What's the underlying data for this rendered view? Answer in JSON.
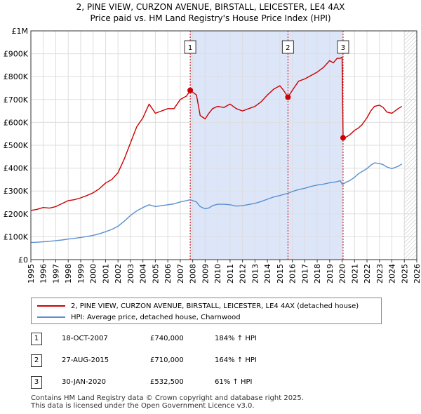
{
  "chart_data": {
    "type": "line",
    "title": "2, PINE VIEW, CURZON AVENUE, BIRSTALL, LEICESTER, LE4 4AX",
    "subtitle": "Price paid vs. HM Land Registry's House Price Index (HPI)",
    "xlim": [
      1995,
      2026
    ],
    "ylim": [
      0,
      1000000
    ],
    "x_ticks": [
      "1995",
      "1996",
      "1997",
      "1998",
      "1999",
      "2000",
      "2001",
      "2002",
      "2003",
      "2004",
      "2005",
      "2006",
      "2007",
      "2008",
      "2009",
      "2010",
      "2011",
      "2012",
      "2013",
      "2014",
      "2015",
      "2016",
      "2017",
      "2018",
      "2019",
      "2020",
      "2021",
      "2022",
      "2023",
      "2024",
      "2025",
      "2026"
    ],
    "y_ticks": [
      {
        "value": 0,
        "label": "£0"
      },
      {
        "value": 100000,
        "label": "£100K"
      },
      {
        "value": 200000,
        "label": "£200K"
      },
      {
        "value": 300000,
        "label": "£300K"
      },
      {
        "value": 400000,
        "label": "£400K"
      },
      {
        "value": 500000,
        "label": "£500K"
      },
      {
        "value": 600000,
        "label": "£600K"
      },
      {
        "value": 700000,
        "label": "£700K"
      },
      {
        "value": 800000,
        "label": "£800K"
      },
      {
        "value": 900000,
        "label": "£900K"
      },
      {
        "value": 1000000,
        "label": "£1M"
      }
    ],
    "shaded_regions": [
      [
        2007.8,
        2020.08
      ]
    ],
    "future_hatch_from": 2025.0,
    "series": [
      {
        "name": "2, PINE VIEW, CURZON AVENUE, BIRSTALL, LEICESTER, LE4 4AX (detached house)",
        "color": "#cc0000",
        "x": [
          1995.0,
          1995.5,
          1996.0,
          1996.5,
          1997.0,
          1997.5,
          1998.0,
          1998.5,
          1999.0,
          1999.5,
          2000.0,
          2000.5,
          2001.0,
          2001.5,
          2002.0,
          2002.5,
          2003.0,
          2003.5,
          2004.0,
          2004.5,
          2005.0,
          2005.5,
          2006.0,
          2006.5,
          2007.0,
          2007.5,
          2007.8,
          2008.3,
          2008.6,
          2009.0,
          2009.3,
          2009.6,
          2010.0,
          2010.5,
          2011.0,
          2011.5,
          2012.0,
          2012.5,
          2013.0,
          2013.5,
          2014.0,
          2014.5,
          2015.0,
          2015.3,
          2015.65,
          2016.0,
          2016.5,
          2017.0,
          2017.5,
          2018.0,
          2018.5,
          2019.0,
          2019.3,
          2019.6,
          2019.85,
          2020.0,
          2020.08,
          2020.3,
          2020.6,
          2021.0,
          2021.3,
          2021.6,
          2022.0,
          2022.3,
          2022.6,
          2023.0,
          2023.3,
          2023.6,
          2024.0,
          2024.5,
          2024.8
        ],
        "y": [
          215000,
          220000,
          228000,
          225000,
          232000,
          245000,
          258000,
          262000,
          270000,
          280000,
          292000,
          310000,
          335000,
          350000,
          380000,
          440000,
          510000,
          580000,
          620000,
          680000,
          640000,
          650000,
          660000,
          660000,
          700000,
          715000,
          740000,
          720000,
          630000,
          615000,
          640000,
          660000,
          670000,
          665000,
          680000,
          660000,
          650000,
          660000,
          670000,
          690000,
          720000,
          745000,
          760000,
          740000,
          710000,
          740000,
          780000,
          790000,
          805000,
          820000,
          840000,
          870000,
          860000,
          880000,
          880000,
          885000,
          532500,
          535000,
          545000,
          565000,
          575000,
          590000,
          620000,
          650000,
          670000,
          675000,
          665000,
          645000,
          640000,
          660000,
          670000
        ],
        "legend_label": "2, PINE VIEW, CURZON AVENUE, BIRSTALL, LEICESTER, LE4 4AX (detached house)"
      },
      {
        "name": "HPI: Average price, detached house, Charnwood",
        "color": "#5a8fd0",
        "x": [
          1995.0,
          1995.5,
          1996.0,
          1996.5,
          1997.0,
          1997.5,
          1998.0,
          1998.5,
          1999.0,
          1999.5,
          2000.0,
          2000.5,
          2001.0,
          2001.5,
          2002.0,
          2002.5,
          2003.0,
          2003.5,
          2004.0,
          2004.5,
          2005.0,
          2005.5,
          2006.0,
          2006.5,
          2007.0,
          2007.5,
          2007.8,
          2008.3,
          2008.6,
          2009.0,
          2009.3,
          2009.6,
          2010.0,
          2010.5,
          2011.0,
          2011.5,
          2012.0,
          2012.5,
          2013.0,
          2013.5,
          2014.0,
          2014.5,
          2015.0,
          2015.3,
          2015.65,
          2016.0,
          2016.5,
          2017.0,
          2017.5,
          2018.0,
          2018.5,
          2019.0,
          2019.3,
          2019.6,
          2019.85,
          2020.0,
          2020.08,
          2020.3,
          2020.6,
          2021.0,
          2021.3,
          2021.6,
          2022.0,
          2022.3,
          2022.6,
          2023.0,
          2023.3,
          2023.6,
          2024.0,
          2024.5,
          2024.8
        ],
        "y": [
          75000,
          76000,
          78000,
          80000,
          83000,
          86000,
          90000,
          93000,
          97000,
          101000,
          106000,
          113000,
          122000,
          132000,
          146000,
          168000,
          193000,
          213000,
          228000,
          240000,
          232000,
          236000,
          240000,
          244000,
          252000,
          258000,
          262000,
          252000,
          232000,
          222000,
          226000,
          236000,
          242000,
          242000,
          240000,
          234000,
          236000,
          241000,
          246000,
          254000,
          264000,
          274000,
          280000,
          285000,
          290000,
          298000,
          306000,
          312000,
          320000,
          326000,
          330000,
          336000,
          338000,
          341000,
          345000,
          330000,
          330000,
          338000,
          345000,
          360000,
          375000,
          385000,
          398000,
          413000,
          423000,
          420000,
          415000,
          405000,
          398000,
          408000,
          418000
        ],
        "legend_label": "HPI: Average price, detached house, Charnwood"
      }
    ],
    "transactions": [
      {
        "id": "1",
        "x": 2007.8,
        "date": "18-OCT-2007",
        "price_value": 740000,
        "price": "£740,000",
        "hpi": "184% ↑ HPI"
      },
      {
        "id": "2",
        "x": 2015.65,
        "date": "27-AUG-2015",
        "price_value": 710000,
        "price": "£710,000",
        "hpi": "164% ↑ HPI"
      },
      {
        "id": "3",
        "x": 2020.08,
        "date": "30-JAN-2020",
        "price_value": 532500,
        "price": "£532,500",
        "hpi": "61% ↑ HPI"
      }
    ]
  },
  "footer": {
    "line1": "Contains HM Land Registry data © Crown copyright and database right 2025.",
    "line2": "This data is licensed under the Open Government Licence v3.0."
  }
}
